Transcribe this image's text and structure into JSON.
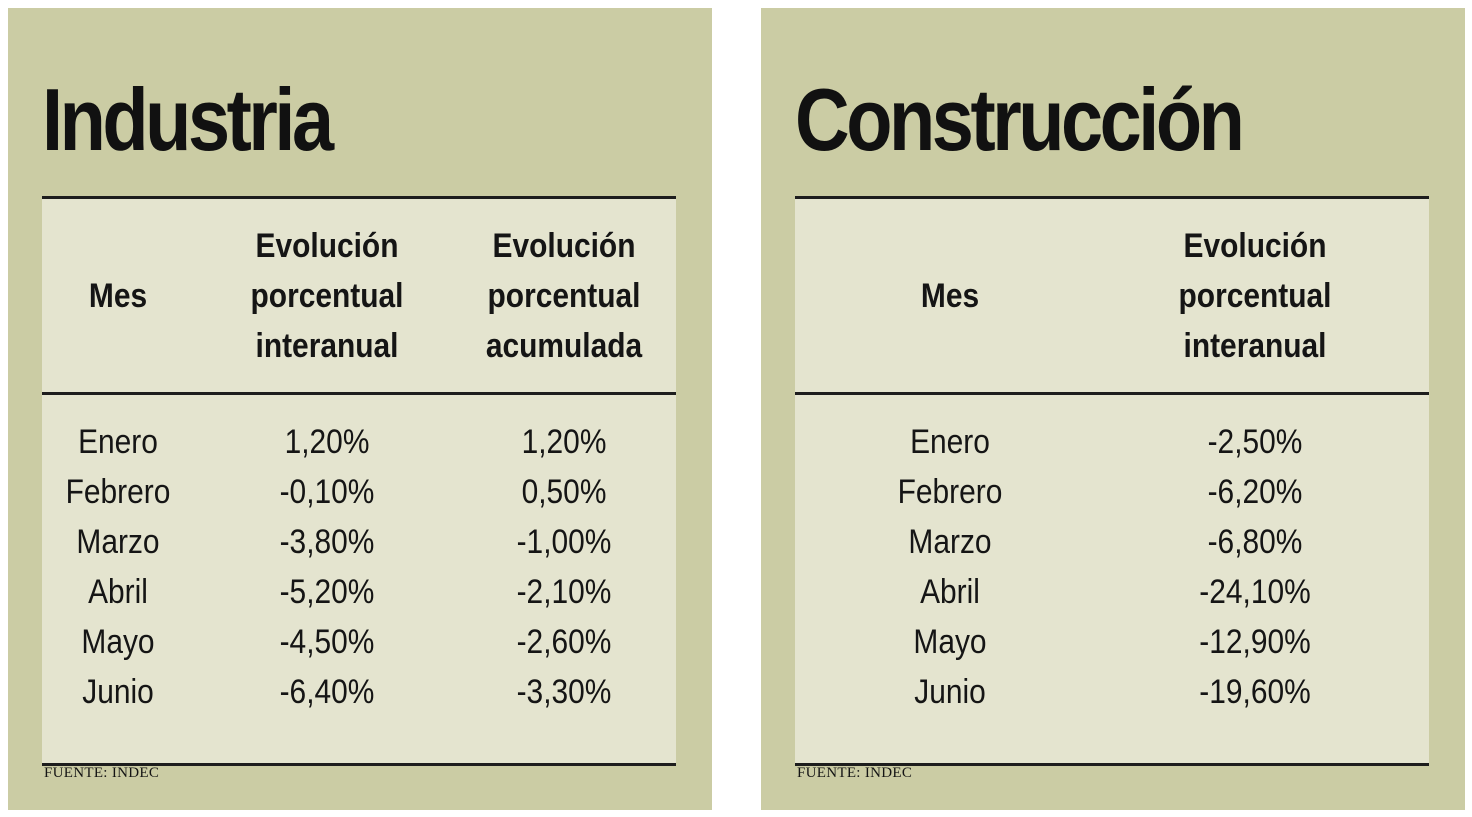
{
  "chart_data": [
    {
      "type": "table",
      "title": "Industria",
      "columns": [
        "Mes",
        "Evolución\nporcentual\ninteranual",
        "Evolución\nporcentual\nacumulada"
      ],
      "rows": [
        [
          "Enero",
          "1,20%",
          "1,20%"
        ],
        [
          "Febrero",
          "-0,10%",
          "0,50%"
        ],
        [
          "Marzo",
          "-3,80%",
          "-1,00%"
        ],
        [
          "Abril",
          "-5,20%",
          "-2,10%"
        ],
        [
          "Mayo",
          "-4,50%",
          "-2,60%"
        ],
        [
          "Junio",
          "-6,40%",
          "-3,30%"
        ]
      ],
      "source": "FUENTE: INDEC"
    },
    {
      "type": "table",
      "title": "Construcción",
      "columns": [
        "Mes",
        "Evolución\nporcentual\ninteranual"
      ],
      "rows": [
        [
          "Enero",
          "-2,50%"
        ],
        [
          "Febrero",
          "-6,20%"
        ],
        [
          "Marzo",
          "-6,80%"
        ],
        [
          "Abril",
          "-24,10%"
        ],
        [
          "Mayo",
          "-12,90%"
        ],
        [
          "Junio",
          "-19,60%"
        ]
      ],
      "source": "FUENTE: INDEC"
    }
  ],
  "colors": {
    "panel_background": "#cbcca4",
    "table_background": "#e4e4cf",
    "rule": "#1d1d1d",
    "text": "#151515"
  }
}
